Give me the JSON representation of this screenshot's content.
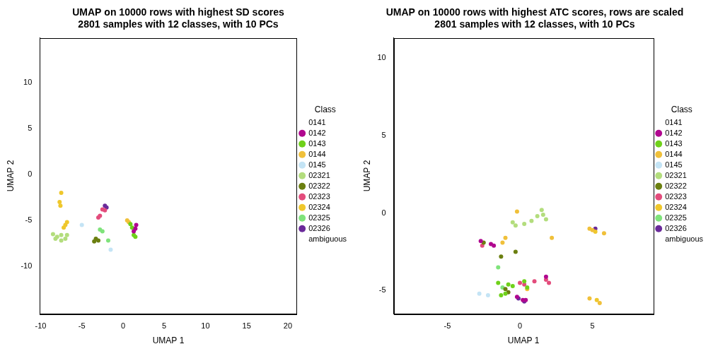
{
  "chart_data": [
    {
      "type": "scatter",
      "title": "UMAP on 10000 rows with highest SD scores\n2801 samples with 12 classes, with 10 PCs",
      "x_label": "UMAP 1",
      "y_label": "UMAP 2",
      "xlim": [
        -10.1,
        21.1
      ],
      "ylim": [
        -15.2,
        14.9
      ],
      "xticks": [
        -10,
        -5,
        0,
        5,
        10,
        15,
        20
      ],
      "yticks": [
        -10,
        -5,
        0,
        5,
        10
      ],
      "grid": false,
      "legend": "right",
      "legend_title": "Class",
      "marker": "circle",
      "series": [
        {
          "name": "0141",
          "color": "#ffffff",
          "values": []
        },
        {
          "name": "0142",
          "color": "#b0078f",
          "values": [
            [
              1.6,
              -5.5
            ],
            [
              1.5,
              -5.9
            ],
            [
              1.3,
              -6.2
            ]
          ]
        },
        {
          "name": "0143",
          "color": "#6fd11a",
          "values": [
            [
              0.9,
              -5.4
            ],
            [
              1.1,
              -5.8
            ],
            [
              1.3,
              -6.6
            ],
            [
              1.5,
              -6.8
            ]
          ]
        },
        {
          "name": "0144",
          "color": "#f0c03a",
          "values": [
            [
              0.5,
              -5.0
            ],
            [
              0.7,
              -5.2
            ]
          ]
        },
        {
          "name": "0145",
          "color": "#c4e4f5",
          "values": [
            [
              -5.0,
              -5.5
            ],
            [
              -1.5,
              -8.2
            ]
          ]
        },
        {
          "name": "02321",
          "color": "#b3dd7d",
          "values": [
            [
              -8.5,
              -6.5
            ],
            [
              -8.0,
              -6.8
            ],
            [
              -7.5,
              -6.6
            ],
            [
              -7.0,
              -7.0
            ],
            [
              -7.5,
              -7.2
            ],
            [
              -8.2,
              -7.0
            ],
            [
              -6.8,
              -6.6
            ]
          ]
        },
        {
          "name": "02322",
          "color": "#6b7f10",
          "values": [
            [
              -3.3,
              -7.0
            ],
            [
              -3.0,
              -7.2
            ],
            [
              -3.5,
              -7.3
            ]
          ]
        },
        {
          "name": "02323",
          "color": "#e34c7c",
          "values": [
            [
              -2.5,
              -3.8
            ],
            [
              -2.2,
              -3.9
            ],
            [
              -3.0,
              -4.7
            ],
            [
              -2.8,
              -4.5
            ]
          ]
        },
        {
          "name": "02324",
          "color": "#efc72c",
          "values": [
            [
              -7.5,
              -2.0
            ],
            [
              -7.7,
              -3.0
            ],
            [
              -7.6,
              -3.4
            ],
            [
              -7.0,
              -5.5
            ],
            [
              -6.8,
              -5.2
            ],
            [
              -7.2,
              -5.8
            ]
          ]
        },
        {
          "name": "02325",
          "color": "#7fe37b",
          "values": [
            [
              -2.8,
              -6.0
            ],
            [
              -2.5,
              -6.2
            ],
            [
              -1.8,
              -7.2
            ]
          ]
        },
        {
          "name": "02326",
          "color": "#6a2a9a",
          "values": [
            [
              -2.2,
              -3.4
            ],
            [
              -2.0,
              -3.6
            ]
          ]
        },
        {
          "name": "ambiguous",
          "color": "#ffffff",
          "values": []
        }
      ]
    },
    {
      "type": "scatter",
      "title": "UMAP on 10000 rows with highest ATC scores, rows are scaled\n2801 samples with 12 classes, with 10 PCs",
      "x_label": "UMAP 1",
      "y_label": "UMAP 2",
      "xlim": [
        -8.7,
        9.2
      ],
      "ylim": [
        -6.5,
        11.3
      ],
      "xticks": [
        -5,
        0,
        5
      ],
      "yticks": [
        -5,
        0,
        5,
        10
      ],
      "grid": false,
      "legend": "right",
      "legend_title": "Class",
      "marker": "circle",
      "series": [
        {
          "name": "0141",
          "color": "#ffffff",
          "values": []
        },
        {
          "name": "0142",
          "color": "#b0078f",
          "values": [
            [
              -2.7,
              -1.8
            ],
            [
              -2.0,
              -2.0
            ],
            [
              -1.8,
              -2.1
            ],
            [
              0.2,
              -5.6
            ],
            [
              0.4,
              -5.6
            ],
            [
              1.8,
              -4.1
            ],
            [
              -0.2,
              -5.4
            ]
          ]
        },
        {
          "name": "0143",
          "color": "#6fd11a",
          "values": [
            [
              -1.5,
              -4.5
            ],
            [
              -1.3,
              -5.3
            ],
            [
              -0.8,
              -4.6
            ],
            [
              -0.5,
              -4.7
            ],
            [
              -1.0,
              -5.2
            ],
            [
              0.3,
              -4.4
            ],
            [
              0.5,
              -4.8
            ]
          ]
        },
        {
          "name": "0144",
          "color": "#f0c03a",
          "values": [
            [
              -0.2,
              0.1
            ],
            [
              -1.0,
              -1.6
            ],
            [
              -1.2,
              -1.9
            ],
            [
              4.8,
              -1.0
            ],
            [
              5.0,
              -1.1
            ],
            [
              5.8,
              -1.3
            ],
            [
              2.2,
              -1.6
            ],
            [
              4.8,
              -5.5
            ],
            [
              5.5,
              -5.8
            ],
            [
              0.5,
              -4.9
            ]
          ]
        },
        {
          "name": "0145",
          "color": "#c4e4f5",
          "values": [
            [
              -2.8,
              -5.2
            ],
            [
              -2.2,
              -5.3
            ]
          ]
        },
        {
          "name": "02321",
          "color": "#b3dd7d",
          "values": [
            [
              1.5,
              0.2
            ],
            [
              1.2,
              -0.2
            ],
            [
              1.8,
              -0.4
            ],
            [
              0.8,
              -0.5
            ],
            [
              0.3,
              -0.7
            ],
            [
              -0.3,
              -0.8
            ],
            [
              -0.5,
              -0.6
            ],
            [
              1.6,
              -0.1
            ]
          ]
        },
        {
          "name": "02322",
          "color": "#6b7f10",
          "values": [
            [
              -2.5,
              -1.9
            ],
            [
              -1.3,
              -2.8
            ],
            [
              -0.3,
              -2.5
            ],
            [
              -1.0,
              -4.9
            ],
            [
              -0.8,
              -5.1
            ]
          ]
        },
        {
          "name": "02323",
          "color": "#e34c7c",
          "values": [
            [
              -2.6,
              -2.1
            ],
            [
              0.0,
              -4.5
            ],
            [
              0.3,
              -4.6
            ],
            [
              1.8,
              -4.3
            ],
            [
              2.0,
              -4.5
            ],
            [
              1.0,
              -4.4
            ]
          ]
        },
        {
          "name": "02324",
          "color": "#efc72c",
          "values": [
            [
              5.2,
              -1.2
            ],
            [
              5.3,
              -5.6
            ]
          ]
        },
        {
          "name": "02325",
          "color": "#7fe37b",
          "values": [
            [
              -1.5,
              -3.5
            ],
            [
              -1.2,
              -4.8
            ]
          ]
        },
        {
          "name": "02326",
          "color": "#6a2a9a",
          "values": [
            [
              0.3,
              -5.7
            ],
            [
              -0.1,
              -5.5
            ],
            [
              5.2,
              -1.0
            ]
          ]
        },
        {
          "name": "ambiguous",
          "color": "#ffffff",
          "values": []
        }
      ]
    }
  ]
}
